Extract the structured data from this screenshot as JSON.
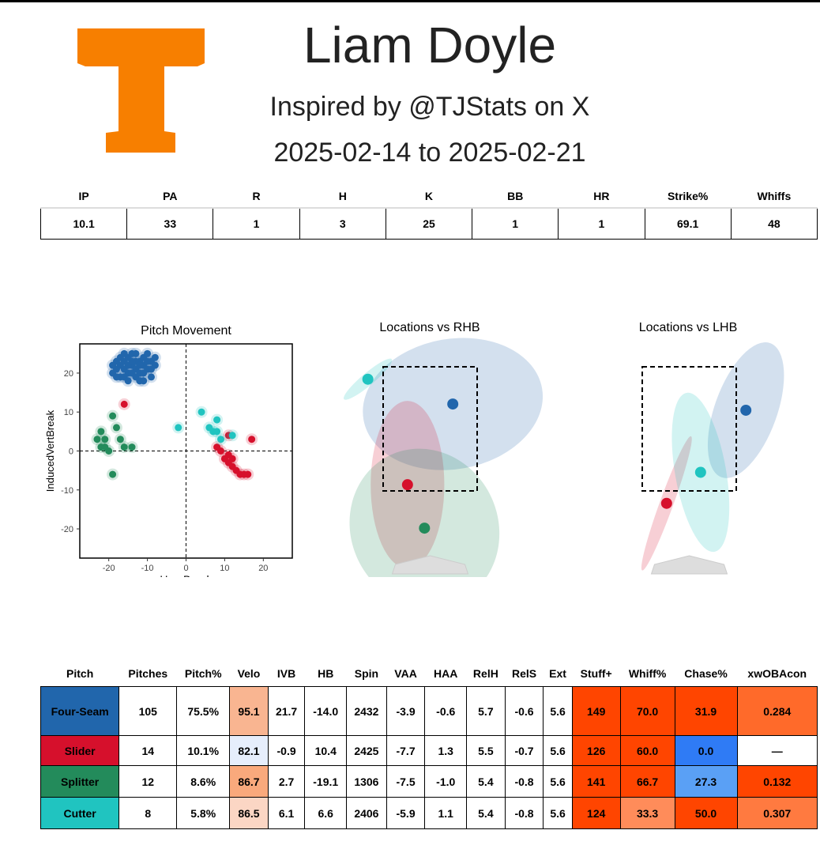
{
  "header": {
    "title": "Liam Doyle",
    "subtitle": "Inspired by @TJStats on X",
    "date_range": "2025-02-14 to 2025-02-21",
    "logo_color": "#F77F00"
  },
  "summary": {
    "columns": [
      "IP",
      "PA",
      "R",
      "H",
      "K",
      "BB",
      "HR",
      "Strike%",
      "Whiffs"
    ],
    "values": [
      "10.1",
      "33",
      "1",
      "3",
      "25",
      "1",
      "1",
      "69.1",
      "48"
    ]
  },
  "pitch_table": {
    "columns": [
      "Pitch",
      "Pitches",
      "Pitch%",
      "Velo",
      "IVB",
      "HB",
      "Spin",
      "VAA",
      "HAA",
      "RelH",
      "RelS",
      "Ext",
      "Stuff+",
      "Whiff%",
      "Chase%",
      "xwOBAcon"
    ],
    "rows": [
      {
        "pitch": "Four-Seam",
        "color": "#2166ac",
        "cells": [
          "105",
          "75.5%",
          "95.1",
          "21.7",
          "-14.0",
          "2432",
          "-3.9",
          "-0.6",
          "5.7",
          "-0.6",
          "5.6",
          "149",
          "70.0",
          "31.9",
          "0.284"
        ],
        "heat": {
          "Velo": "#f9b591",
          "Stuff+": "#ff4500",
          "Whiff%": "#ff4500",
          "Chase%": "#ff4500",
          "xwOBAcon": "#ff6a2a"
        }
      },
      {
        "pitch": "Slider",
        "color": "#d6102c",
        "cells": [
          "14",
          "10.1%",
          "82.1",
          "-0.9",
          "10.4",
          "2425",
          "-7.7",
          "1.3",
          "5.5",
          "-0.7",
          "5.6",
          "126",
          "60.0",
          "0.0",
          "—"
        ],
        "heat": {
          "Velo": "#e6eefc",
          "Stuff+": "#ff4500",
          "Whiff%": "#ff4500",
          "Chase%": "#2f7bf5",
          "xwOBAcon": "#ffffff"
        }
      },
      {
        "pitch": "Splitter",
        "color": "#238b5b",
        "cells": [
          "12",
          "8.6%",
          "86.7",
          "2.7",
          "-19.1",
          "1306",
          "-7.5",
          "-1.0",
          "5.4",
          "-0.8",
          "5.6",
          "141",
          "66.7",
          "27.3",
          "0.132"
        ],
        "heat": {
          "Velo": "#f9a97c",
          "Stuff+": "#ff4500",
          "Whiff%": "#ff4500",
          "Chase%": "#5aa0f5",
          "xwOBAcon": "#ff4500"
        }
      },
      {
        "pitch": "Cutter",
        "color": "#20c4c0",
        "cells": [
          "8",
          "5.8%",
          "86.5",
          "6.1",
          "6.6",
          "2406",
          "-5.9",
          "1.1",
          "5.4",
          "-0.8",
          "5.6",
          "124",
          "33.3",
          "50.0",
          "0.307"
        ],
        "heat": {
          "Velo": "#fbd6c4",
          "Stuff+": "#ff4500",
          "Whiff%": "#ff8c5a",
          "Chase%": "#ff4500",
          "xwOBAcon": "#ff7a40"
        }
      }
    ]
  },
  "chart_data": [
    {
      "type": "scatter",
      "title": "Pitch Movement",
      "xlabel": "HorzBreak",
      "ylabel": "InducedVertBreak",
      "xlim": [
        -27.5,
        27.5
      ],
      "ylim": [
        -27.5,
        27.5
      ],
      "xticks": [
        -20,
        -10,
        0,
        10,
        20
      ],
      "yticks": [
        -20,
        -10,
        0,
        10,
        20
      ],
      "reference_lines": {
        "x": 0,
        "y": 0
      },
      "series": [
        {
          "color": "#2166ac",
          "points": [
            [
              -19,
              20
            ],
            [
              -18,
              21
            ],
            [
              -17,
              22
            ],
            [
              -16,
              21
            ],
            [
              -15,
              20
            ],
            [
              -14,
              22
            ],
            [
              -13,
              21
            ],
            [
              -12,
              23
            ],
            [
              -11,
              22
            ],
            [
              -10,
              21
            ],
            [
              -9,
              23
            ],
            [
              -8,
              24
            ],
            [
              -17,
              19
            ],
            [
              -16,
              23
            ],
            [
              -15,
              24
            ],
            [
              -14,
              20
            ],
            [
              -13,
              19
            ],
            [
              -12,
              20
            ],
            [
              -11,
              24
            ],
            [
              -10,
              23
            ],
            [
              -18,
              23
            ],
            [
              -17,
              24
            ],
            [
              -16,
              25
            ],
            [
              -15,
              22
            ],
            [
              -14,
              25
            ],
            [
              -13,
              23
            ],
            [
              -12,
              22
            ],
            [
              -11,
              20
            ],
            [
              -10,
              25
            ],
            [
              -9,
              21
            ],
            [
              -19,
              22
            ],
            [
              -18,
              19
            ],
            [
              -16,
              19
            ],
            [
              -13,
              25
            ],
            [
              -12,
              18
            ],
            [
              -11,
              18
            ],
            [
              -9,
              19
            ],
            [
              -15,
              18
            ],
            [
              -14,
              23
            ],
            [
              -8,
              22
            ]
          ]
        },
        {
          "color": "#d6102c",
          "points": [
            [
              -16,
              12
            ],
            [
              17,
              3
            ],
            [
              8,
              1
            ],
            [
              9,
              0
            ],
            [
              10,
              -2
            ],
            [
              11,
              -3
            ],
            [
              11,
              -1
            ],
            [
              12,
              -4
            ],
            [
              13,
              -5
            ],
            [
              14,
              -6
            ],
            [
              15,
              -6
            ],
            [
              16,
              -6
            ],
            [
              11,
              4
            ],
            [
              12,
              -2
            ]
          ]
        },
        {
          "color": "#238b5b",
          "points": [
            [
              -22,
              5
            ],
            [
              -21,
              3
            ],
            [
              -22,
              1
            ],
            [
              -21,
              1
            ],
            [
              -20,
              0
            ],
            [
              -19,
              9
            ],
            [
              -18,
              6
            ],
            [
              -17,
              3
            ],
            [
              -16,
              1
            ],
            [
              -14,
              1
            ],
            [
              -19,
              -6
            ],
            [
              -23,
              3
            ]
          ]
        },
        {
          "color": "#20c4c0",
          "points": [
            [
              -2,
              6
            ],
            [
              4,
              10
            ],
            [
              6,
              6
            ],
            [
              8,
              8
            ],
            [
              8,
              5
            ],
            [
              9,
              3
            ],
            [
              12,
              4
            ],
            [
              7,
              5
            ]
          ]
        }
      ]
    },
    {
      "type": "scatter",
      "title": "Locations vs RHB",
      "series": [
        {
          "color": "#2166ac",
          "mean": [
            0.4,
            2.9
          ],
          "ellipse": {
            "rx": 1.6,
            "ry": 1.05,
            "rot": -10
          }
        },
        {
          "color": "#d6102c",
          "mean": [
            -0.4,
            1.6
          ],
          "ellipse": {
            "rx": 0.65,
            "ry": 1.35,
            "rot": 0
          }
        },
        {
          "color": "#238b5b",
          "mean": [
            -0.1,
            0.9
          ],
          "ellipse": {
            "rx": 1.3,
            "ry": 1.3,
            "rot": -25
          }
        },
        {
          "color": "#20c4c0",
          "mean": [
            -1.1,
            3.3
          ],
          "ellipse": {
            "rx": 0.55,
            "ry": 0.1,
            "rot": -40
          }
        }
      ],
      "strike_zone": true
    },
    {
      "type": "scatter",
      "title": "Locations vs LHB",
      "series": [
        {
          "color": "#2166ac",
          "mean": [
            1.0,
            2.8
          ],
          "ellipse": {
            "rx": 0.55,
            "ry": 1.15,
            "rot": 20
          }
        },
        {
          "color": "#d6102c",
          "mean": [
            -0.4,
            1.3
          ],
          "ellipse": {
            "rx": 0.12,
            "ry": 1.15,
            "rot": 20
          }
        },
        {
          "color": "#20c4c0",
          "mean": [
            0.2,
            1.8
          ],
          "ellipse": {
            "rx": 0.45,
            "ry": 1.3,
            "rot": -10
          }
        }
      ],
      "strike_zone": true
    }
  ]
}
